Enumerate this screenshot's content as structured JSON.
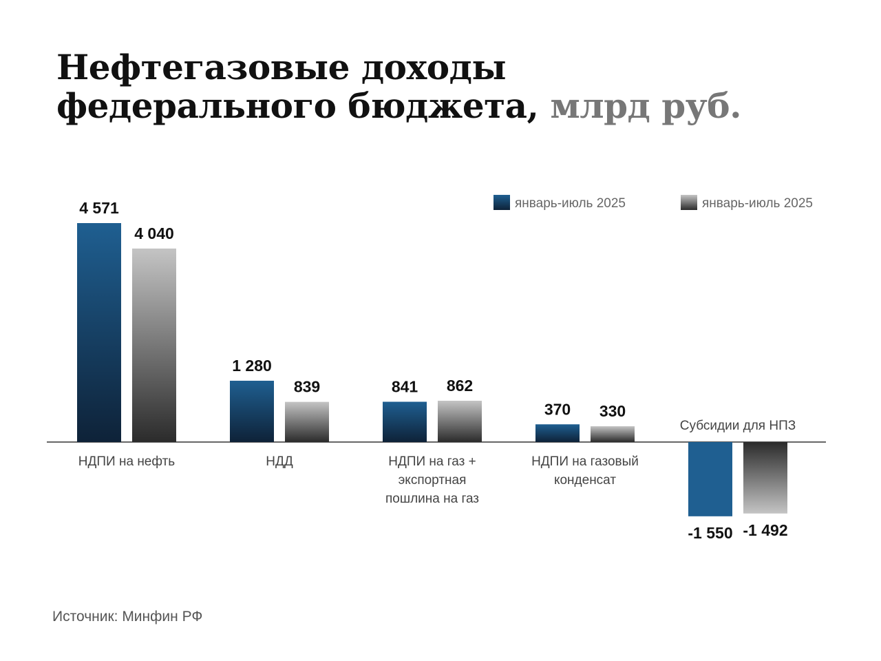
{
  "title": {
    "line1": "Нефтегазовые доходы",
    "line2": "федерального бюджета,",
    "unit": "млрд руб."
  },
  "source": "Источник: Минфин РФ",
  "colors": {
    "series1_top": "#1f5f91",
    "series1_bottom": "#0e2238",
    "series2_top": "#c4c4c4",
    "series2_bottom": "#2b2b2b",
    "axis": "#333333"
  },
  "chart_data": {
    "type": "bar",
    "title": "Нефтегазовые доходы федерального бюджета, млрд руб.",
    "categories": [
      [
        "НДПИ на нефть"
      ],
      [
        "НДД"
      ],
      [
        "НДПИ на газ +",
        "экспортная",
        "пошлина на газ"
      ],
      [
        "НДПИ на газовый",
        "конденсат"
      ],
      [
        "Субсидии для НПЗ"
      ]
    ],
    "series": [
      {
        "name": "январь-июль 2025",
        "values": [
          4571,
          1280,
          841,
          370,
          -1550
        ],
        "labels": [
          "4 571",
          "1 280",
          "841",
          "370",
          "-1 550"
        ]
      },
      {
        "name": "январь-июль 2025",
        "values": [
          4040,
          839,
          862,
          330,
          -1492
        ],
        "labels": [
          "4 040",
          "839",
          "862",
          "330",
          "-1 492"
        ]
      }
    ],
    "legend": "top-right",
    "grid": false
  }
}
